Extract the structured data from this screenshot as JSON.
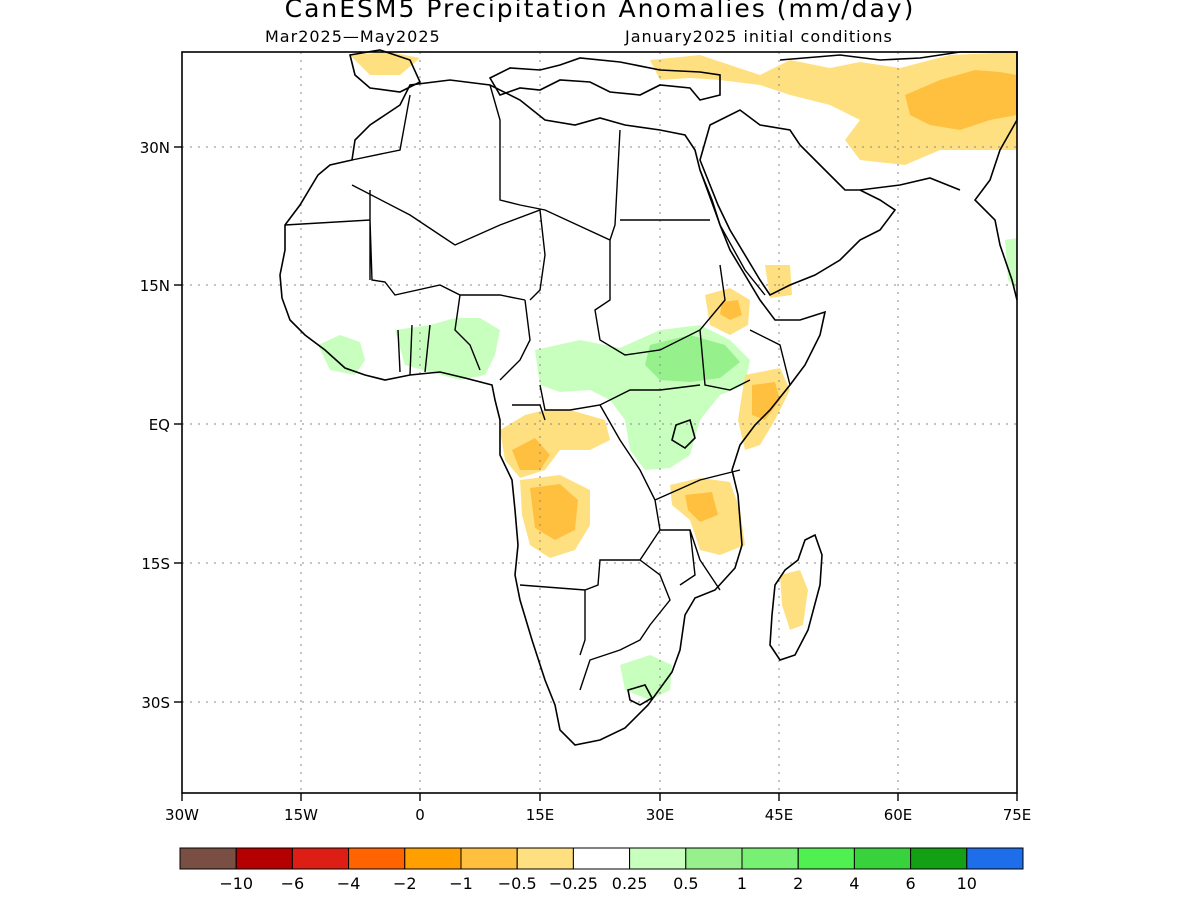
{
  "title": "CanESM5 Precipitation Anomalies (mm/day)",
  "subtitle_left": "Mar2025—May2025",
  "subtitle_right": "January2025 initial conditions",
  "axes": {
    "lon_ticks": [
      "30W",
      "15W",
      "0",
      "15E",
      "30E",
      "45E",
      "60E",
      "75E"
    ],
    "lat_ticks": [
      "30N",
      "15N",
      "EQ",
      "15S",
      "30S"
    ]
  },
  "colorbar": {
    "colors": [
      "#7a4f43",
      "#b40000",
      "#dc1e14",
      "#ff6400",
      "#ffa000",
      "#ffc040",
      "#ffe080",
      "#ffffff",
      "#c8ffbe",
      "#96f08c",
      "#78f073",
      "#50f050",
      "#37d23c",
      "#14a014",
      "#1e6eeb"
    ],
    "labels": [
      "−10",
      "−6",
      "−4",
      "−2",
      "−1",
      "−0.5",
      "−0.25",
      "0.25",
      "0.5",
      "1",
      "2",
      "4",
      "6",
      "10"
    ]
  },
  "legend": {
    "anomaly_colors": {
      "light_orange": "#ffe080",
      "orange": "#ffc040",
      "light_green": "#c8ffbe",
      "green": "#96f08c"
    }
  }
}
